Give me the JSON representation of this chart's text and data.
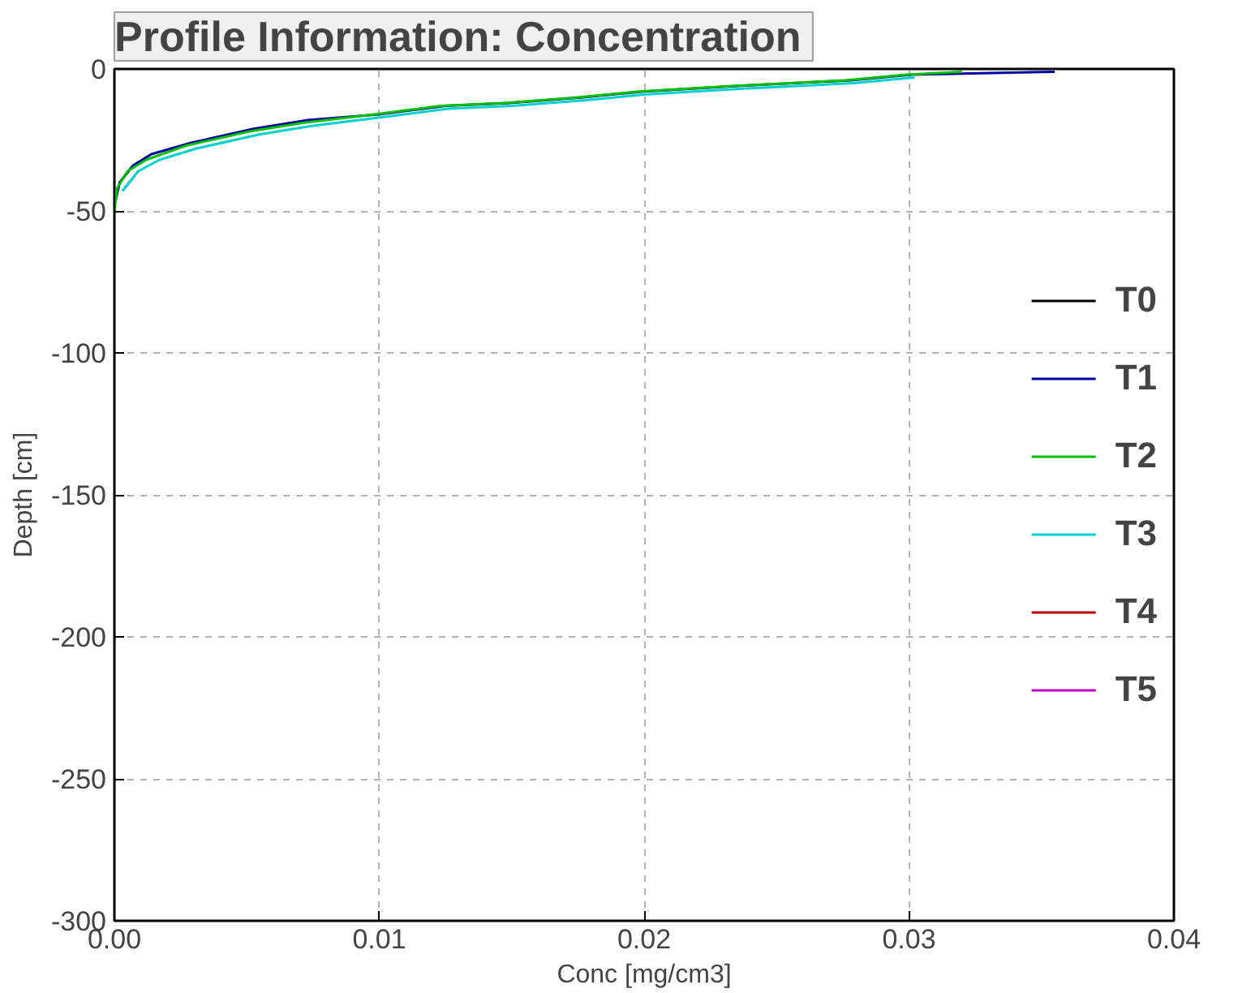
{
  "chart_data": {
    "type": "line",
    "title": "Profile Information:  Concentration",
    "xlabel": "Conc [mg/cm3]",
    "ylabel": "Depth [cm]",
    "xlim": [
      0,
      0.04
    ],
    "ylim": [
      -300,
      0
    ],
    "xticks": [
      {
        "value": 0,
        "label": "0.00"
      },
      {
        "value": 0.01,
        "label": "0.01"
      },
      {
        "value": 0.02,
        "label": "0.02"
      },
      {
        "value": 0.03,
        "label": "0.03"
      },
      {
        "value": 0.04,
        "label": "0.04"
      }
    ],
    "yticks": [
      0,
      -50,
      -100,
      -150,
      -200,
      -250,
      -300
    ],
    "grid": true,
    "legend": "right",
    "line_style": "solid",
    "marker": "none",
    "series": [
      {
        "name": "T0",
        "color": "#000000"
      },
      {
        "name": "T1",
        "color": "#0000a0",
        "x": [
          0,
          0.0002,
          0.0007,
          0.0014,
          0.0029,
          0.0053,
          0.0073,
          0.01,
          0.0125,
          0.0149,
          0.0177,
          0.0199,
          0.0235,
          0.0278,
          0.0301,
          0.0355
        ],
        "values": [
          -48,
          -40,
          -34,
          -30,
          -26,
          -21,
          -18,
          -16,
          -13,
          -12,
          -10,
          -8,
          -6,
          -4,
          -2,
          -1
        ]
      },
      {
        "name": "T2",
        "color": "#00c000",
        "x": [
          0,
          0.0001,
          0.0005,
          0.0012,
          0.0027,
          0.0051,
          0.0071,
          0.0098,
          0.0123,
          0.0147,
          0.0175,
          0.0197,
          0.0233,
          0.0276,
          0.0299,
          0.032
        ],
        "values": [
          -50,
          -42,
          -36,
          -32,
          -27,
          -22,
          -19,
          -16,
          -13,
          -12,
          -10,
          -8,
          -6,
          -4,
          -2,
          -1
        ]
      },
      {
        "name": "T3",
        "color": "#00d0d0",
        "x": [
          0.0003,
          0.0009,
          0.0017,
          0.0031,
          0.0055,
          0.0075,
          0.0101,
          0.0126,
          0.015,
          0.0178,
          0.02,
          0.0236,
          0.0279,
          0.0302
        ],
        "values": [
          -43,
          -36,
          -32,
          -28,
          -23,
          -20,
          -17,
          -14,
          -13,
          -11,
          -9,
          -7,
          -5,
          -3
        ]
      },
      {
        "name": "T4",
        "color": "#c00000"
      },
      {
        "name": "T5",
        "color": "#c000c0"
      }
    ]
  }
}
